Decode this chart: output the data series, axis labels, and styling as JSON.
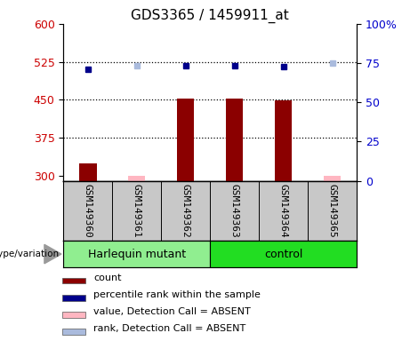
{
  "title": "GDS3365 / 1459911_at",
  "samples": [
    "GSM149360",
    "GSM149361",
    "GSM149362",
    "GSM149363",
    "GSM149364",
    "GSM149365"
  ],
  "ylim_left": [
    290,
    600
  ],
  "ylim_right": [
    0,
    100
  ],
  "yticks_left": [
    300,
    375,
    450,
    525,
    600
  ],
  "yticks_right": [
    0,
    25,
    50,
    75,
    100
  ],
  "count_values": [
    325,
    300,
    452,
    453,
    448,
    300
  ],
  "count_color": "#8B0000",
  "count_absent": [
    false,
    true,
    false,
    false,
    false,
    true
  ],
  "count_absent_color": "#FFB6C1",
  "percentile_values": [
    510,
    517,
    518,
    518,
    516,
    522
  ],
  "percentile_color": "#00008B",
  "percentile_absent": [
    false,
    true,
    false,
    false,
    false,
    true
  ],
  "percentile_absent_color": "#AABBDD",
  "x_positions": [
    1,
    2,
    3,
    4,
    5,
    6
  ],
  "left_axis_color": "#CC0000",
  "right_axis_color": "#0000CC",
  "sample_area_color": "#C8C8C8",
  "harlequin_color": "#90EE90",
  "control_color": "#22DD22",
  "legend_items": [
    {
      "label": "count",
      "color": "#8B0000"
    },
    {
      "label": "percentile rank within the sample",
      "color": "#00008B"
    },
    {
      "label": "value, Detection Call = ABSENT",
      "color": "#FFB6C1"
    },
    {
      "label": "rank, Detection Call = ABSENT",
      "color": "#AABBDD"
    }
  ],
  "dotted_gridlines": [
    375,
    450,
    525
  ],
  "title_fontsize": 11,
  "tick_fontsize": 9,
  "sample_fontsize": 8,
  "legend_fontsize": 8,
  "group_fontsize": 9
}
